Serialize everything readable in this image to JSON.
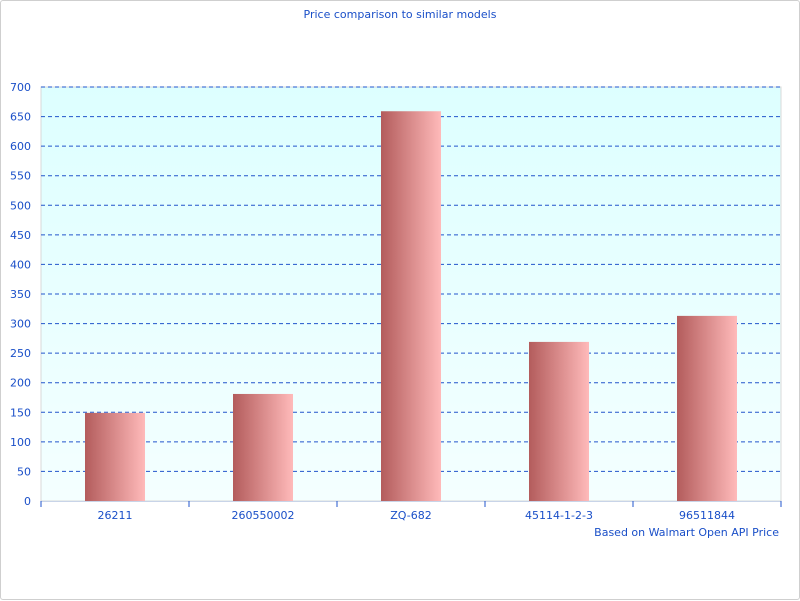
{
  "chart_data": {
    "type": "bar",
    "title": "Price comparison to similar models",
    "xlabel": "Based on Walmart Open API Price",
    "ylabel": "",
    "categories": [
      "26211",
      "260550002",
      "ZQ-682",
      "45114-1-2-3",
      "96511844"
    ],
    "values": [
      149,
      181,
      659,
      269,
      313
    ],
    "ylim": [
      0,
      700
    ],
    "yticks": [
      0,
      50,
      100,
      150,
      200,
      250,
      300,
      350,
      400,
      450,
      500,
      550,
      600,
      650,
      700
    ],
    "grid": true,
    "legend": "none",
    "colors": {
      "bar_dark": "#b35c5c",
      "bar_light": "#ffbaba",
      "grid": "#2255cc",
      "text": "#1a4fc8",
      "plot_bg_top": "#ddffff",
      "plot_bg_bottom": "#f4ffff"
    }
  }
}
